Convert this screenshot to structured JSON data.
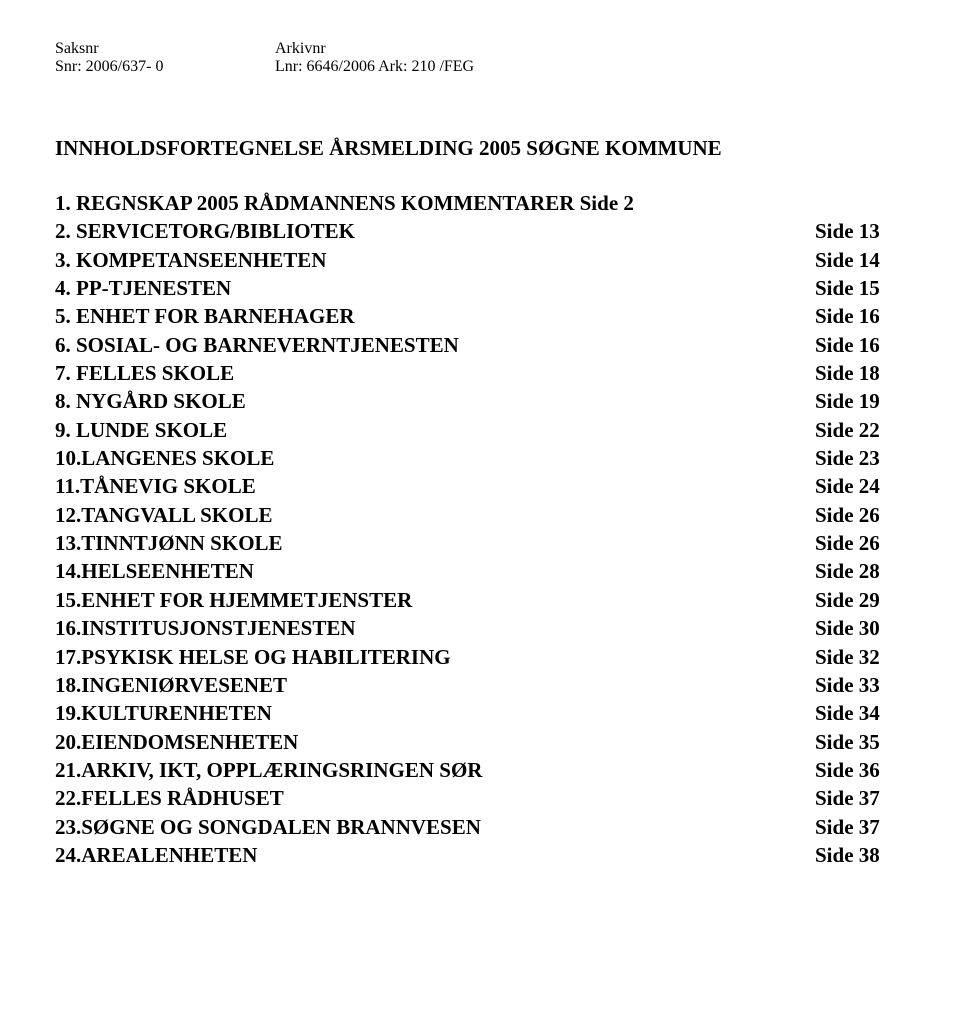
{
  "header": {
    "left_label": "Saksnr",
    "left_value": "Snr: 2006/637- 0",
    "right_label": "Arkivnr",
    "right_value": "Lnr: 6646/2006  Ark: 210  /FEG"
  },
  "title": "INNHOLDSFORTEGNELSE ÅRSMELDING 2005 SØGNE KOMMUNE",
  "toc": [
    {
      "num": "1.",
      "label": "REGNSKAP 2005 RÅDMANNENS KOMMENTARER Side 2",
      "page": ""
    },
    {
      "num": "2.",
      "label": "SERVICETORG/BIBLIOTEK",
      "page": "Side 13"
    },
    {
      "num": "3.",
      "label": "KOMPETANSEENHETEN",
      "page": "Side 14"
    },
    {
      "num": "4.",
      "label": "PP-TJENESTEN",
      "page": "Side 15"
    },
    {
      "num": "5.",
      "label": "ENHET FOR BARNEHAGER",
      "page": "Side 16"
    },
    {
      "num": "6.",
      "label": "SOSIAL- OG BARNEVERNTJENESTEN",
      "page": "Side 16"
    },
    {
      "num": "7.",
      "label": "FELLES SKOLE",
      "page": "Side 18"
    },
    {
      "num": "8.",
      "label": "NYGÅRD SKOLE",
      "page": "Side 19"
    },
    {
      "num": "9.",
      "label": "LUNDE SKOLE",
      "page": "Side 22"
    },
    {
      "num": "10.",
      "label": "LANGENES SKOLE",
      "page": "Side 23"
    },
    {
      "num": "11.",
      "label": "TÅNEVIG SKOLE",
      "page": "Side 24"
    },
    {
      "num": "12.",
      "label": "TANGVALL SKOLE",
      "page": "Side 26"
    },
    {
      "num": "13.",
      "label": "TINNTJØNN SKOLE",
      "page": "Side 26"
    },
    {
      "num": "14.",
      "label": "HELSEENHETEN",
      "page": "Side 28"
    },
    {
      "num": "15.",
      "label": "ENHET FOR HJEMMETJENSTER",
      "page": "Side 29"
    },
    {
      "num": "16.",
      "label": "INSTITUSJONSTJENESTEN",
      "page": "Side 30"
    },
    {
      "num": "17.",
      "label": "PSYKISK HELSE OG HABILITERING",
      "page": "Side 32"
    },
    {
      "num": "18.",
      "label": "INGENIØRVESENET",
      "page": "Side 33"
    },
    {
      "num": "19.",
      "label": "KULTURENHETEN",
      "page": "Side 34"
    },
    {
      "num": "20.",
      "label": "EIENDOMSENHETEN",
      "page": "Side 35"
    },
    {
      "num": "21.",
      "label": "ARKIV, IKT, OPPLÆRINGSRINGEN SØR",
      "page": "Side 36"
    },
    {
      "num": "22.",
      "label": "FELLES RÅDHUSET",
      "page": "Side 37"
    },
    {
      "num": "23.",
      "label": "SØGNE OG SONGDALEN BRANNVESEN",
      "page": "Side 37"
    },
    {
      "num": "24.",
      "label": "AREALENHETEN",
      "page": "Side 38"
    }
  ]
}
